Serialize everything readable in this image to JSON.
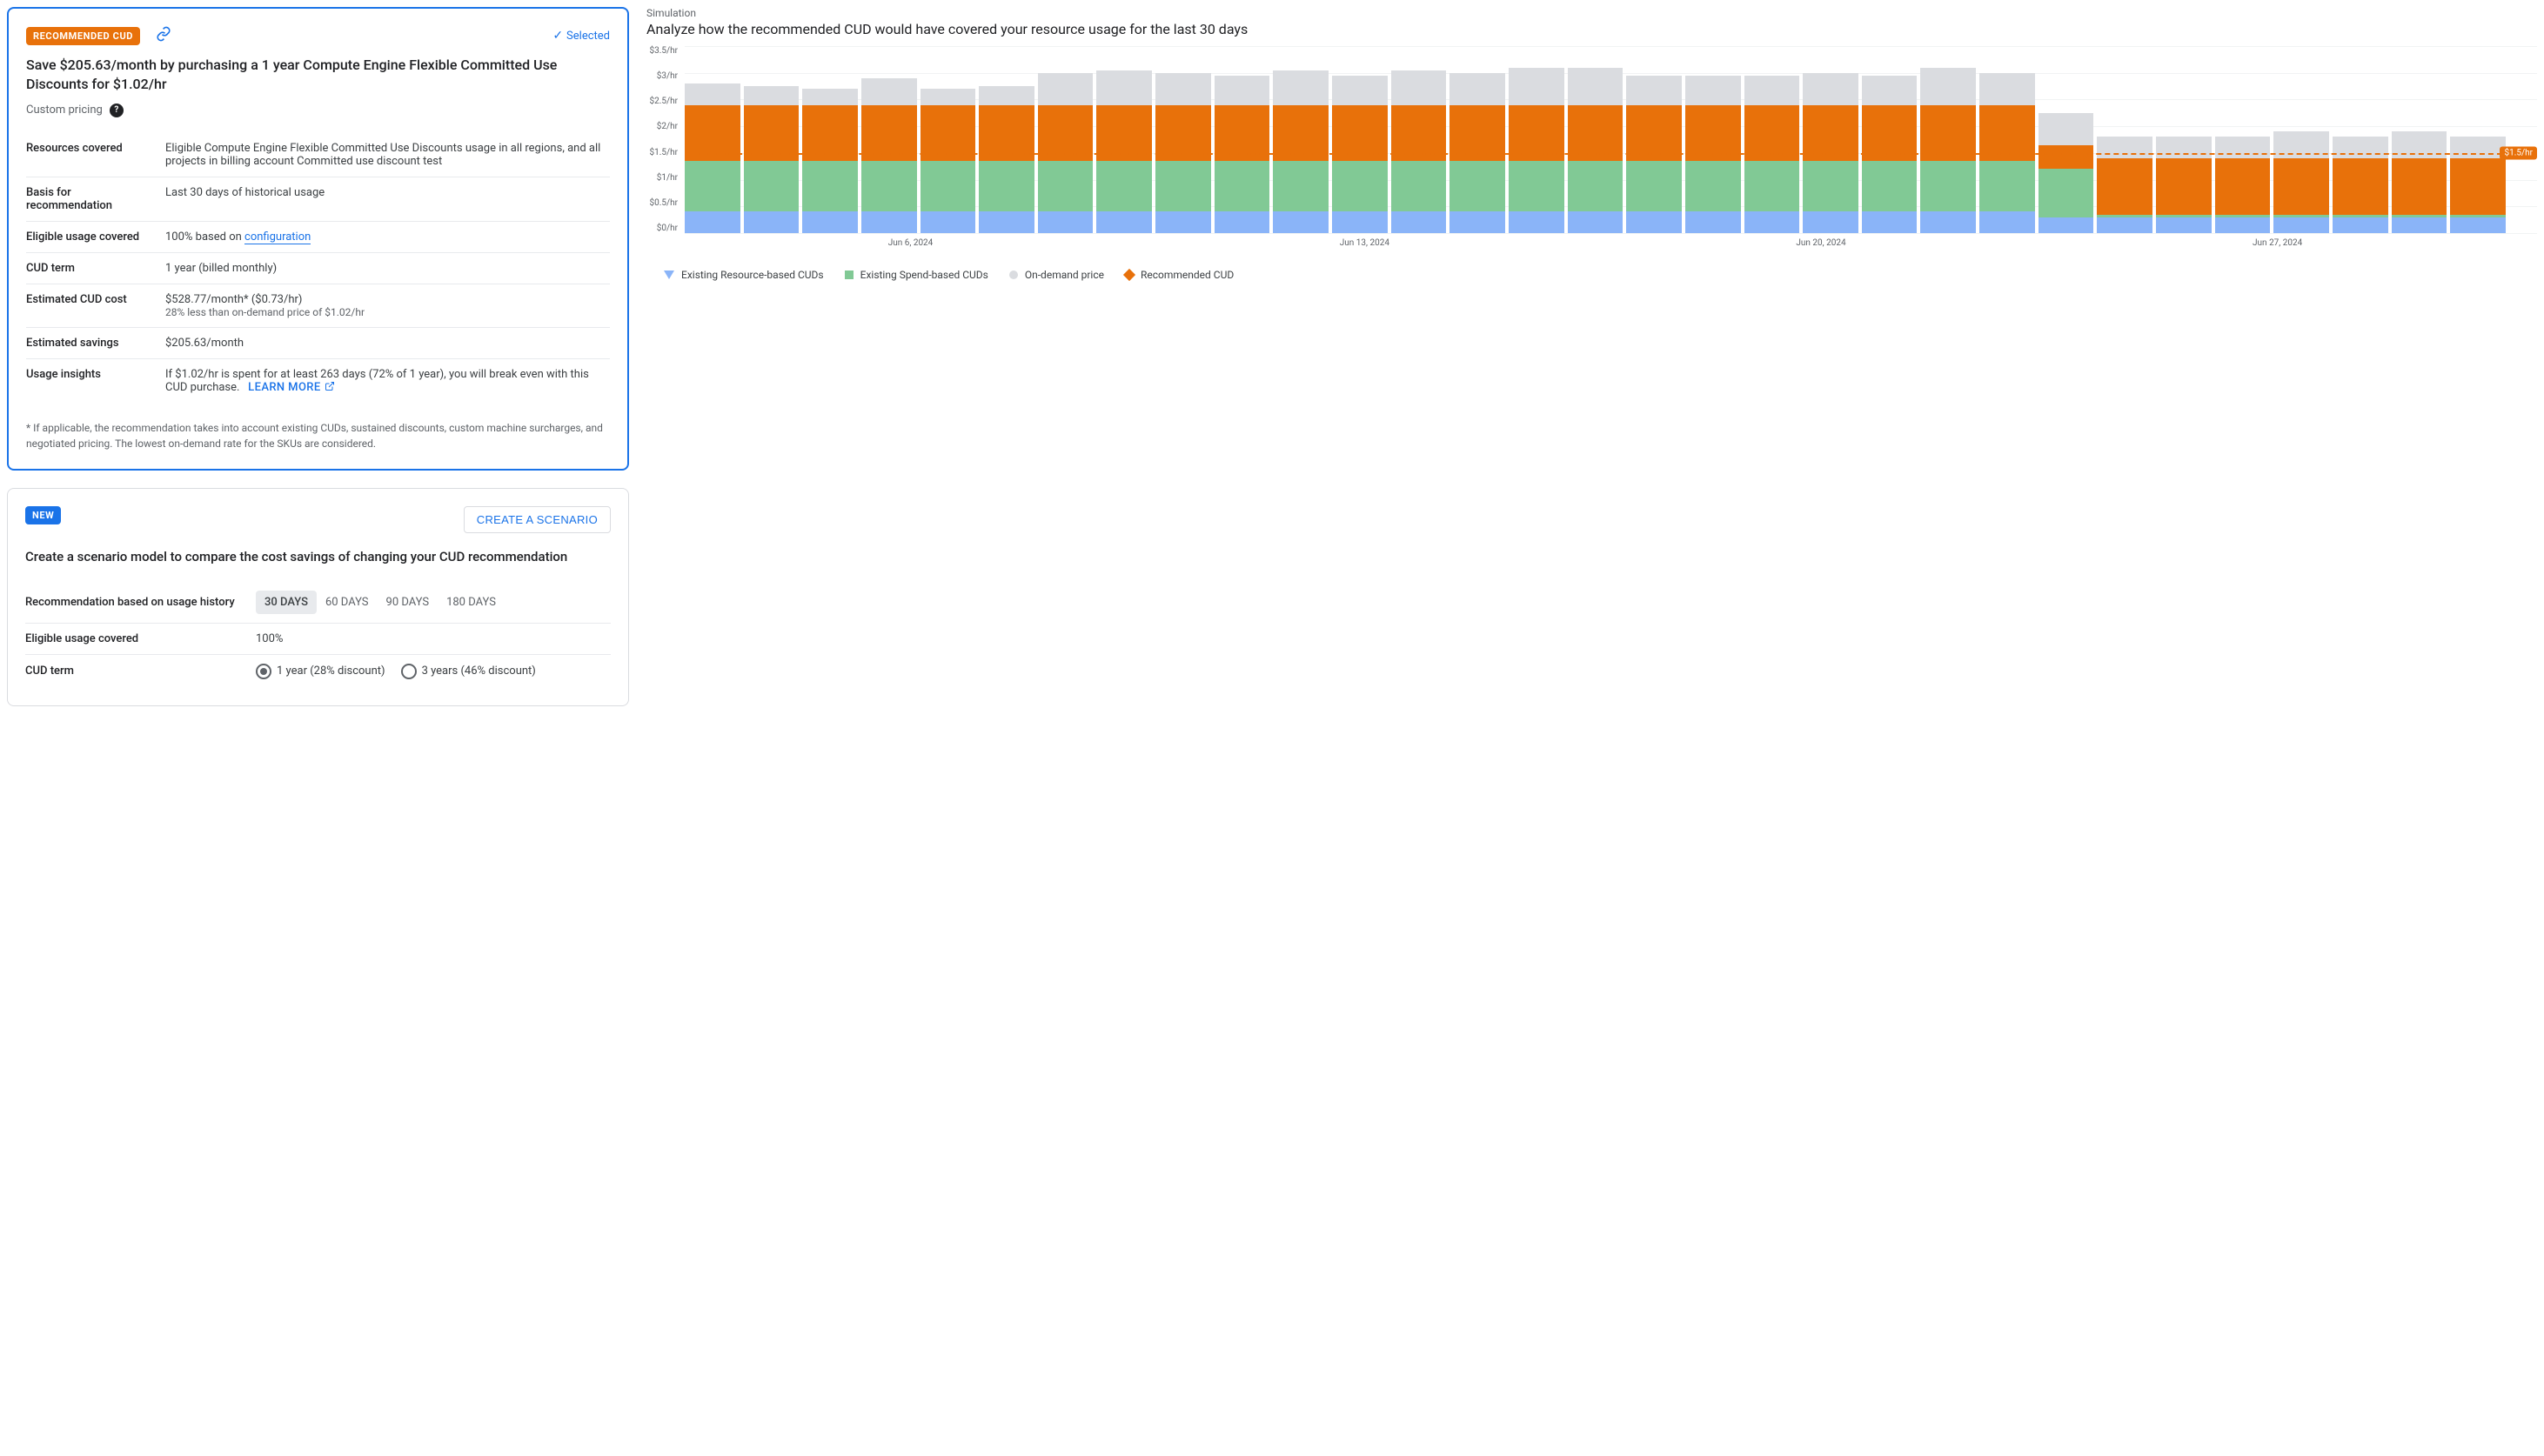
{
  "card": {
    "badge": "RECOMMENDED CUD",
    "selected_label": "Selected",
    "title": "Save $205.63/month by purchasing a 1 year Compute Engine Flexible Committed Use Discounts for $1.02/hr",
    "custom_pricing_label": "Custom pricing",
    "rows": {
      "resources_covered": {
        "label": "Resources covered",
        "value": "Eligible Compute Engine Flexible Committed Use Discounts usage in all regions, and all projects in billing account Committed use discount test"
      },
      "basis": {
        "label": "Basis for recommendation",
        "value": "Last 30 days of historical usage"
      },
      "eligible": {
        "label": "Eligible usage covered",
        "prefix": "100% based on ",
        "link": "configuration"
      },
      "term": {
        "label": "CUD term",
        "value": "1 year (billed monthly)"
      },
      "cost": {
        "label": "Estimated CUD cost",
        "value": "$528.77/month* ($0.73/hr)",
        "sub": "28% less than on-demand price of $1.02/hr"
      },
      "savings": {
        "label": "Estimated savings",
        "value": "$205.63/month"
      },
      "insights": {
        "label": "Usage insights",
        "value": "If $1.02/hr is spent for at least 263 days (72% of 1 year), you will break even with this CUD purchase.",
        "learn_more": "LEARN MORE"
      }
    },
    "footnote": "* If applicable, the recommendation takes into account existing CUDs, sustained discounts, custom machine surcharges, and negotiated pricing. The lowest on-demand rate for the SKUs are considered."
  },
  "scenario": {
    "badge": "NEW",
    "create_btn": "CREATE A SCENARIO",
    "title": "Create a scenario model to compare the cost savings of changing your CUD recommendation",
    "rows": {
      "basis": {
        "label": "Recommendation based on usage history",
        "options": [
          "30 DAYS",
          "60 DAYS",
          "90 DAYS",
          "180 DAYS"
        ],
        "active": 0
      },
      "eligible": {
        "label": "Eligible usage covered",
        "value": "100%"
      },
      "term": {
        "label": "CUD term",
        "options": [
          "1 year (28% discount)",
          "3 years (46% discount)"
        ],
        "checked": 0
      }
    }
  },
  "sim": {
    "section_label": "Simulation",
    "title": "Analyze how the recommended CUD would have covered your resource usage for the last 30 days",
    "chart": {
      "type": "stacked-bar",
      "ymax": 3.5,
      "ylabels": [
        "$3.5/hr",
        "$3/hr",
        "$2.5/hr",
        "$2/hr",
        "$1.5/hr",
        "$1/hr",
        "$0.5/hr",
        "$0/hr"
      ],
      "xlabels": [
        "Jun 6, 2024",
        "Jun 13, 2024",
        "Jun 20, 2024",
        "Jun 27, 2024"
      ],
      "colors": {
        "existing_resource": "#8ab4f8",
        "existing_spend": "#81c995",
        "recommended": "#e8710a",
        "on_demand": "#dadce0",
        "dashed": "#e8710a"
      },
      "recommended_line_value": 1.5,
      "recommended_line_label": "$1.5/hr",
      "bars": [
        {
          "existing_resource": 0.4,
          "existing_spend": 0.95,
          "recommended": 1.05,
          "on_demand": 0.4
        },
        {
          "existing_resource": 0.4,
          "existing_spend": 0.95,
          "recommended": 1.05,
          "on_demand": 0.35
        },
        {
          "existing_resource": 0.4,
          "existing_spend": 0.95,
          "recommended": 1.05,
          "on_demand": 0.3
        },
        {
          "existing_resource": 0.4,
          "existing_spend": 0.95,
          "recommended": 1.05,
          "on_demand": 0.5
        },
        {
          "existing_resource": 0.4,
          "existing_spend": 0.95,
          "recommended": 1.05,
          "on_demand": 0.3
        },
        {
          "existing_resource": 0.4,
          "existing_spend": 0.95,
          "recommended": 1.05,
          "on_demand": 0.35
        },
        {
          "existing_resource": 0.4,
          "existing_spend": 0.95,
          "recommended": 1.05,
          "on_demand": 0.6
        },
        {
          "existing_resource": 0.4,
          "existing_spend": 0.95,
          "recommended": 1.05,
          "on_demand": 0.65
        },
        {
          "existing_resource": 0.4,
          "existing_spend": 0.95,
          "recommended": 1.05,
          "on_demand": 0.6
        },
        {
          "existing_resource": 0.4,
          "existing_spend": 0.95,
          "recommended": 1.05,
          "on_demand": 0.55
        },
        {
          "existing_resource": 0.4,
          "existing_spend": 0.95,
          "recommended": 1.05,
          "on_demand": 0.65
        },
        {
          "existing_resource": 0.4,
          "existing_spend": 0.95,
          "recommended": 1.05,
          "on_demand": 0.55
        },
        {
          "existing_resource": 0.4,
          "existing_spend": 0.95,
          "recommended": 1.05,
          "on_demand": 0.65
        },
        {
          "existing_resource": 0.4,
          "existing_spend": 0.95,
          "recommended": 1.05,
          "on_demand": 0.6
        },
        {
          "existing_resource": 0.4,
          "existing_spend": 0.95,
          "recommended": 1.05,
          "on_demand": 0.7
        },
        {
          "existing_resource": 0.4,
          "existing_spend": 0.95,
          "recommended": 1.05,
          "on_demand": 0.7
        },
        {
          "existing_resource": 0.4,
          "existing_spend": 0.95,
          "recommended": 1.05,
          "on_demand": 0.55
        },
        {
          "existing_resource": 0.4,
          "existing_spend": 0.95,
          "recommended": 1.05,
          "on_demand": 0.55
        },
        {
          "existing_resource": 0.4,
          "existing_spend": 0.95,
          "recommended": 1.05,
          "on_demand": 0.55
        },
        {
          "existing_resource": 0.4,
          "existing_spend": 0.95,
          "recommended": 1.05,
          "on_demand": 0.6
        },
        {
          "existing_resource": 0.4,
          "existing_spend": 0.95,
          "recommended": 1.05,
          "on_demand": 0.55
        },
        {
          "existing_resource": 0.4,
          "existing_spend": 0.95,
          "recommended": 1.05,
          "on_demand": 0.7
        },
        {
          "existing_resource": 0.4,
          "existing_spend": 0.95,
          "recommended": 1.05,
          "on_demand": 0.6
        },
        {
          "existing_resource": 0.3,
          "existing_spend": 0.9,
          "recommended": 0.45,
          "on_demand": 0.6
        },
        {
          "existing_resource": 0.3,
          "existing_spend": 0.05,
          "recommended": 1.05,
          "on_demand": 0.4
        },
        {
          "existing_resource": 0.3,
          "existing_spend": 0.05,
          "recommended": 1.05,
          "on_demand": 0.4
        },
        {
          "existing_resource": 0.3,
          "existing_spend": 0.05,
          "recommended": 1.05,
          "on_demand": 0.4
        },
        {
          "existing_resource": 0.3,
          "existing_spend": 0.05,
          "recommended": 1.05,
          "on_demand": 0.5
        },
        {
          "existing_resource": 0.3,
          "existing_spend": 0.05,
          "recommended": 1.05,
          "on_demand": 0.4
        },
        {
          "existing_resource": 0.3,
          "existing_spend": 0.05,
          "recommended": 1.05,
          "on_demand": 0.5
        },
        {
          "existing_resource": 0.3,
          "existing_spend": 0.05,
          "recommended": 1.05,
          "on_demand": 0.4
        }
      ]
    },
    "legend": [
      {
        "marker": "triangle",
        "color": "#8ab4f8",
        "label": "Existing Resource-based CUDs"
      },
      {
        "marker": "square",
        "color": "#81c995",
        "label": "Existing Spend-based CUDs"
      },
      {
        "marker": "circle",
        "color": "#dadce0",
        "label": "On-demand price"
      },
      {
        "marker": "diamond",
        "color": "#e8710a",
        "label": "Recommended CUD"
      }
    ]
  }
}
